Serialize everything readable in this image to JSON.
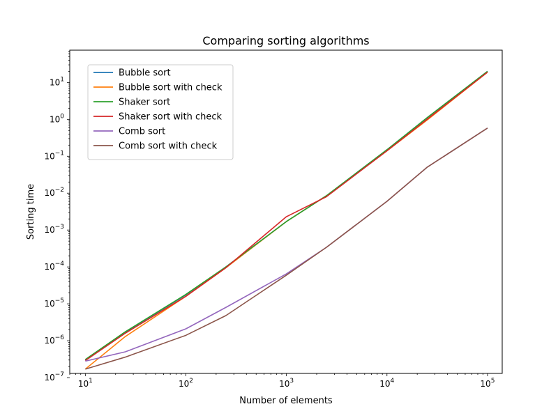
{
  "chart_data": {
    "type": "line",
    "title": "Comparing sorting algorithms",
    "xlabel": "Number of elements",
    "ylabel": "Sorting time",
    "xscale": "log",
    "yscale": "log",
    "xlim": [
      7,
      140000
    ],
    "ylim": [
      1.3e-07,
      75
    ],
    "grid": false,
    "legend_placement": "upper-left",
    "x_ticks": [
      {
        "value": 10,
        "base": "10",
        "exp": "1"
      },
      {
        "value": 100,
        "base": "10",
        "exp": "2"
      },
      {
        "value": 1000,
        "base": "10",
        "exp": "3"
      },
      {
        "value": 10000,
        "base": "10",
        "exp": "4"
      },
      {
        "value": 100000,
        "base": "10",
        "exp": "5"
      }
    ],
    "y_ticks": [
      {
        "value": 1e-07,
        "base": "10",
        "exp": "−7"
      },
      {
        "value": 1e-06,
        "base": "10",
        "exp": "−6"
      },
      {
        "value": 1e-05,
        "base": "10",
        "exp": "−5"
      },
      {
        "value": 0.0001,
        "base": "10",
        "exp": "−4"
      },
      {
        "value": 0.001,
        "base": "10",
        "exp": "−3"
      },
      {
        "value": 0.01,
        "base": "10",
        "exp": "−2"
      },
      {
        "value": 0.1,
        "base": "10",
        "exp": "−1"
      },
      {
        "value": 1,
        "base": "10",
        "exp": "0"
      },
      {
        "value": 10,
        "base": "10",
        "exp": "1"
      }
    ],
    "x": [
      10,
      25,
      100,
      250,
      1000,
      2500,
      10000,
      25000,
      100000
    ],
    "series": [
      {
        "name": "Bubble sort",
        "color": "#1f77b4",
        "values": [
          3e-07,
          1.7e-06,
          1.75e-05,
          0.0001,
          0.0017,
          0.0085,
          0.15,
          1.1,
          20.0
        ]
      },
      {
        "name": "Bubble sort with check",
        "color": "#ff7f0e",
        "values": [
          1.7e-07,
          1.3e-06,
          1.6e-05,
          9.5e-05,
          0.0017,
          0.0085,
          0.14,
          0.95,
          19.0
        ]
      },
      {
        "name": "Shaker sort",
        "color": "#2ca02c",
        "values": [
          3.1e-07,
          1.75e-06,
          1.8e-05,
          0.0001,
          0.0017,
          0.0085,
          0.15,
          1.1,
          20.0
        ]
      },
      {
        "name": "Shaker sort with check",
        "color": "#d62728",
        "values": [
          2.9e-07,
          1.6e-06,
          1.6e-05,
          9.5e-05,
          0.0023,
          0.008,
          0.14,
          1.0,
          19.0
        ]
      },
      {
        "name": "Comb sort",
        "color": "#9467bd",
        "values": [
          2.8e-07,
          5e-07,
          2.1e-06,
          8e-06,
          6.5e-05,
          0.00034,
          0.006,
          0.05,
          0.58
        ]
      },
      {
        "name": "Comb sort with check",
        "color": "#8c564b",
        "values": [
          1.7e-07,
          3.6e-07,
          1.4e-06,
          4.8e-06,
          6e-05,
          0.00034,
          0.006,
          0.05,
          0.58
        ]
      }
    ]
  }
}
